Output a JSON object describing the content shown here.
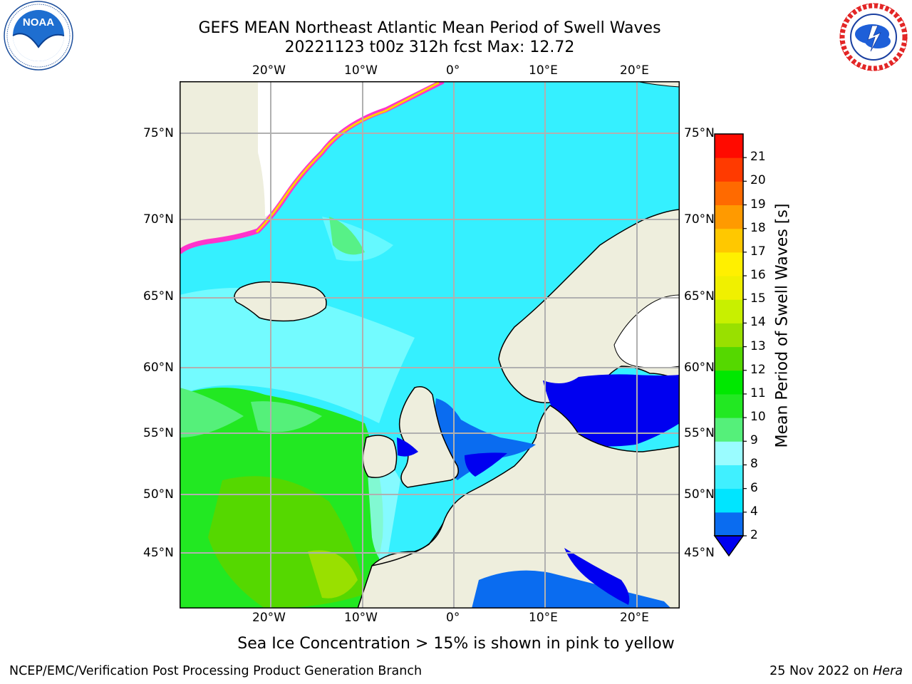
{
  "title_line1": "GEFS MEAN Northeast Atlantic Mean Period of Swell Waves",
  "title_line2": "20221123 t00z 312h fcst   Max: 12.72",
  "lon_labels": [
    "20°W",
    "10°W",
    "0°",
    "10°E",
    "20°E"
  ],
  "lat_labels": [
    "75°N",
    "70°N",
    "65°N",
    "60°N",
    "55°N",
    "50°N",
    "45°N"
  ],
  "colorbar": {
    "label": "Mean Period of Swell Waves [s]",
    "ticks": [
      "2",
      "4",
      "6",
      "8",
      "9",
      "10",
      "11",
      "12",
      "13",
      "14",
      "15",
      "16",
      "17",
      "18",
      "19",
      "20",
      "21"
    ],
    "colors": [
      "#0a6cf0",
      "#00e5ff",
      "#40f0ff",
      "#9afcff",
      "#55f07a",
      "#22e822",
      "#00e800",
      "#55d800",
      "#99e000",
      "#c8f000",
      "#f0f000",
      "#fff000",
      "#ffc800",
      "#ff9a00",
      "#ff6a00",
      "#ff3a00",
      "#ff0a00"
    ],
    "extend_color": "#0000f0"
  },
  "footnote": "Sea Ice Concentration > 15% is shown in pink to yellow",
  "footer_left": "NCEP/EMC/Verification Post Processing Product Generation Branch",
  "footer_right_date": "25 Nov 2022 on ",
  "footer_right_host": "Hera",
  "logo_left_text": "NOAA",
  "logo_right_text": "NATIONAL WEATHER SERVICE",
  "colors": {
    "ocean_base": "#35f0ff",
    "land": "#eeeedd",
    "grid": "#b0b0b0"
  }
}
